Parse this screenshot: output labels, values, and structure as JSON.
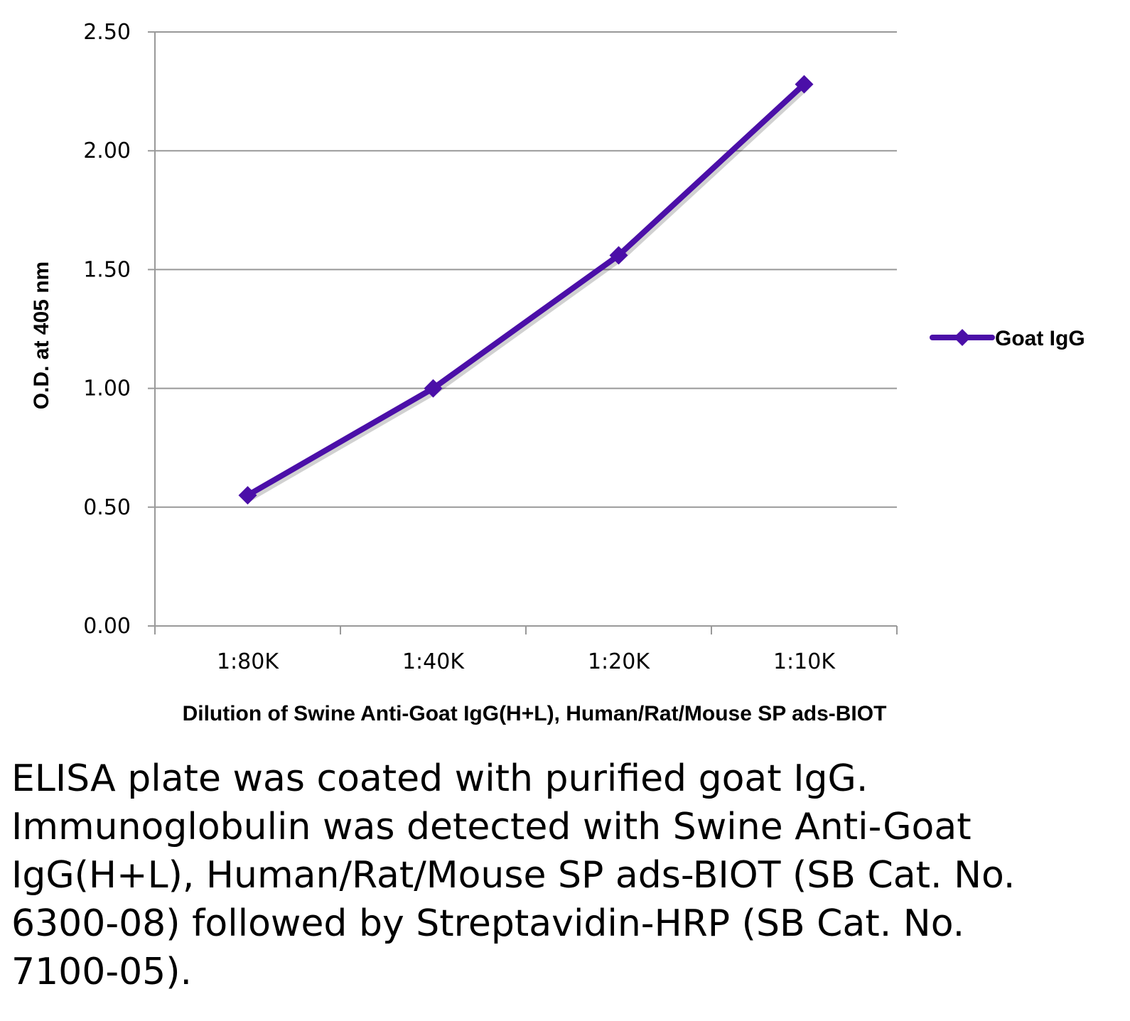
{
  "chart_data": {
    "type": "line",
    "categories": [
      "1:80K",
      "1:40K",
      "1:20K",
      "1:10K"
    ],
    "series": [
      {
        "name": "Goat IgG",
        "values": [
          0.55,
          1.0,
          1.56,
          2.28
        ],
        "color": "#4b0fa8"
      }
    ],
    "ylim": [
      0,
      2.5
    ],
    "yticks": [
      "0.00",
      "0.50",
      "1.00",
      "1.50",
      "2.00",
      "2.50"
    ],
    "ytick_values": [
      0,
      0.5,
      1.0,
      1.5,
      2.0,
      2.5
    ],
    "ylabel": "O.D. at 405 nm",
    "xlabel": "Dilution of Swine Anti-Goat IgG(H+L), Human/Rat/Mouse SP ads-BIOT",
    "legend_position": "right",
    "grid": true,
    "grid_color": "#999999"
  },
  "caption": "ELISA plate was coated with purified goat IgG.  Immunoglobulin was detected with Swine Anti-Goat IgG(H+L), Human/Rat/Mouse SP ads-BIOT (SB Cat. No. 6300-08) followed by Streptavidin-HRP (SB Cat. No. 7100-05)."
}
